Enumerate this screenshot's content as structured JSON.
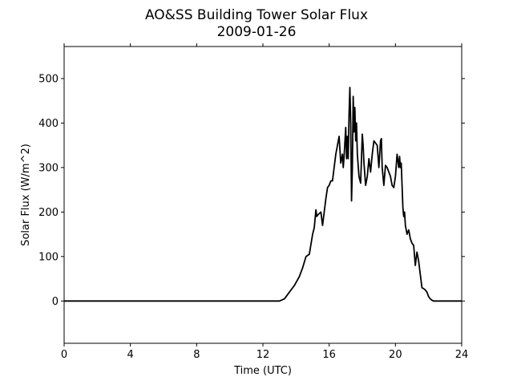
{
  "chart_data": {
    "type": "line",
    "title": "AO&SS Building Tower Solar Flux",
    "subtitle": "2009-01-26",
    "xlabel": "Time (UTC)",
    "ylabel": "Solar Flux (W/m^2)",
    "xlim": [
      0,
      24
    ],
    "ylim": [
      -95,
      572
    ],
    "xticks": [
      0,
      4,
      8,
      12,
      16,
      20,
      24
    ],
    "xtick_labels": [
      "0",
      "4",
      "8",
      "12",
      "16",
      "20",
      "24"
    ],
    "yticks": [
      0,
      100,
      200,
      300,
      400,
      500
    ],
    "ytick_labels": [
      "0",
      "100",
      "200",
      "300",
      "400",
      "500"
    ],
    "grid": false,
    "line_color": "#000000",
    "series": [
      {
        "x": [
          0,
          13.0,
          13.3,
          13.6,
          13.9,
          14.2,
          14.4,
          14.6,
          14.8,
          15.0,
          15.1,
          15.2,
          15.25,
          15.35,
          15.5,
          15.6,
          15.7,
          15.8,
          15.9,
          16.0,
          16.1,
          16.2,
          16.4,
          16.6,
          16.7,
          16.8,
          16.85,
          16.9,
          17.0,
          17.05,
          17.1,
          17.15,
          17.2,
          17.25,
          17.3,
          17.35,
          17.4,
          17.45,
          17.5,
          17.55,
          17.6,
          17.65,
          17.7,
          17.8,
          17.9,
          18.0,
          18.05,
          18.1,
          18.2,
          18.3,
          18.4,
          18.5,
          18.6,
          18.7,
          18.8,
          18.9,
          19.0,
          19.1,
          19.15,
          19.2,
          19.3,
          19.4,
          19.5,
          19.6,
          19.7,
          19.8,
          19.9,
          20.0,
          20.1,
          20.2,
          20.25,
          20.3,
          20.35,
          20.4,
          20.45,
          20.5,
          20.55,
          20.6,
          20.7,
          20.8,
          20.9,
          21.0,
          21.1,
          21.2,
          21.3,
          21.4,
          21.5,
          21.6,
          21.7,
          21.8,
          21.9,
          22.0,
          22.1,
          22.2,
          22.3,
          22.5,
          22.7,
          22.9,
          23.1,
          23.3,
          23.5,
          24.0
        ],
        "y": [
          0,
          0,
          5,
          20,
          35,
          55,
          75,
          100,
          105,
          150,
          165,
          205,
          190,
          195,
          200,
          170,
          200,
          230,
          255,
          260,
          270,
          270,
          330,
          370,
          310,
          330,
          300,
          325,
          390,
          320,
          370,
          320,
          420,
          480,
          400,
          225,
          300,
          460,
          380,
          435,
          360,
          400,
          330,
          280,
          265,
          375,
          350,
          310,
          260,
          280,
          320,
          290,
          330,
          360,
          355,
          350,
          300,
          360,
          365,
          300,
          260,
          305,
          300,
          290,
          280,
          260,
          255,
          280,
          330,
          300,
          325,
          300,
          310,
          260,
          210,
          190,
          200,
          170,
          150,
          160,
          140,
          130,
          125,
          80,
          110,
          90,
          60,
          30,
          28,
          25,
          20,
          10,
          5,
          2,
          0,
          0,
          0,
          0,
          0,
          0,
          0,
          0
        ]
      }
    ]
  }
}
